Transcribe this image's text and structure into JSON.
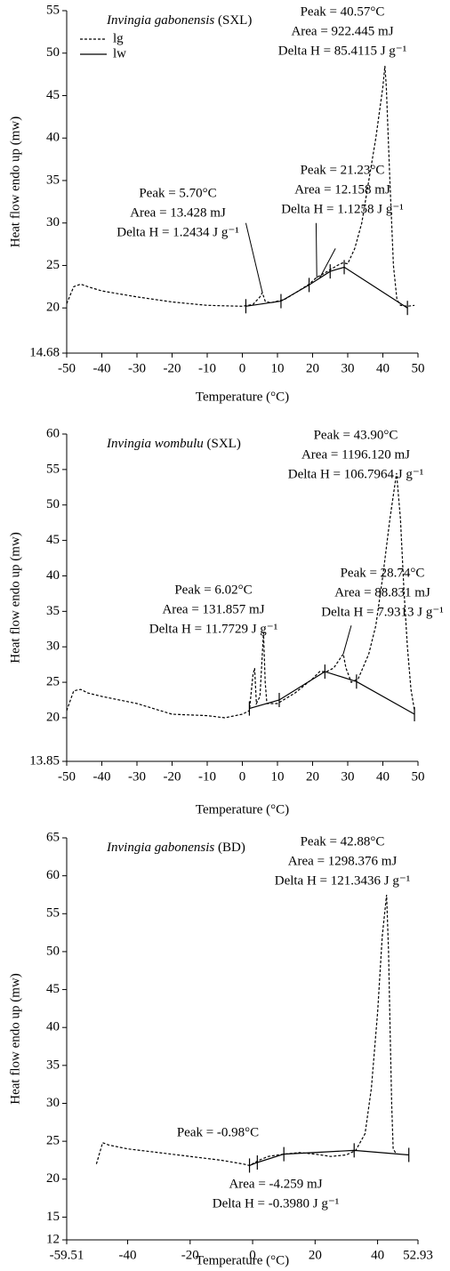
{
  "chart_data": [
    {
      "type": "line",
      "title": "Invingia gabonensis",
      "title_note": "(SXL)",
      "x_label": "Temperature (°C)",
      "y_label": "Heat flow endo up (mw)",
      "xlim": [
        -50,
        50
      ],
      "xticks": [
        -50,
        -40,
        -30,
        -20,
        -10,
        0,
        10,
        20,
        30,
        40,
        50
      ],
      "ylim": [
        14.68,
        55
      ],
      "yticks": [
        14.68,
        20,
        25,
        30,
        35,
        40,
        45,
        50,
        55
      ],
      "legend": true,
      "series": [
        {
          "name": "lg",
          "color": "#000000",
          "style": "dashed",
          "x": [
            -50,
            -48,
            -46,
            -44,
            -40,
            -30,
            -20,
            -10,
            0,
            3,
            5,
            5.7,
            6.5,
            8,
            12,
            16,
            19,
            21.2,
            23,
            25,
            27,
            28.5,
            30,
            32,
            34,
            36,
            38,
            40,
            40.57,
            41,
            42,
            43,
            44,
            45,
            47,
            49
          ],
          "values": [
            20.5,
            22.5,
            22.8,
            22.5,
            22,
            21.3,
            20.7,
            20.3,
            20.2,
            20.4,
            21.3,
            21.8,
            20.8,
            20.6,
            21,
            22,
            22.8,
            23.6,
            24,
            24.5,
            25,
            25.3,
            25.2,
            27,
            30,
            35,
            40,
            46,
            48.5,
            46,
            35,
            25,
            21,
            20.3,
            20.2,
            20.3
          ]
        },
        {
          "name": "lw",
          "color": "#000000",
          "style": "solid",
          "x": [
            1,
            11,
            19,
            25,
            29,
            47
          ],
          "values": [
            20.2,
            20.8,
            22.7,
            24.3,
            24.8,
            20
          ]
        }
      ],
      "annotations": [
        [
          "Peak = 40.57°C",
          "Area = 922.445 mJ",
          "Delta H = 85.4115 J g⁻¹"
        ],
        [
          "Peak = 5.70°C",
          "Area = 13.428 mJ",
          "Delta H = 1.2434 J g⁻¹"
        ],
        [
          "Peak = 21.23°C",
          "Area = 12.158 mJ",
          "Delta H = 1.1258 J g⁻¹"
        ]
      ]
    },
    {
      "type": "line",
      "title": "Invingia wombulu",
      "title_note": "(SXL)",
      "x_label": "Temperature (°C)",
      "y_label": "Heat flow endo up (mw)",
      "xlim": [
        -50,
        50
      ],
      "xticks": [
        -50,
        -40,
        -30,
        -20,
        -10,
        0,
        10,
        20,
        30,
        40,
        50
      ],
      "ylim": [
        13.85,
        60
      ],
      "yticks": [
        13.85,
        20,
        25,
        30,
        35,
        40,
        45,
        50,
        55,
        60
      ],
      "legend": false,
      "series": [
        {
          "color": "#000000",
          "style": "dashed",
          "x": [
            -50,
            -48,
            -46,
            -44,
            -40,
            -30,
            -20,
            -10,
            -5,
            0,
            2,
            3,
            3.5,
            4,
            5,
            6.02,
            6.5,
            7,
            10,
            15,
            20,
            22,
            24,
            26,
            28.74,
            29.5,
            31,
            33,
            36,
            38,
            40,
            42,
            43.9,
            45,
            46,
            47,
            48,
            49
          ],
          "values": [
            21,
            23.8,
            24,
            23.5,
            23,
            22,
            20.5,
            20.3,
            20,
            20.5,
            21,
            26,
            27,
            22,
            23,
            32,
            25,
            22,
            22,
            23.5,
            25.5,
            26.5,
            26.5,
            27,
            29,
            27,
            25,
            25.5,
            29,
            33,
            40,
            48,
            54.5,
            48,
            38,
            30,
            24,
            21
          ]
        },
        {
          "color": "#000000",
          "style": "solid",
          "x": [
            2,
            10.5,
            23.5,
            32.5,
            49
          ],
          "values": [
            21.3,
            22.5,
            26.5,
            25.1,
            20.5
          ]
        }
      ],
      "annotations": [
        [
          "Peak = 43.90°C",
          "Area = 1196.120 mJ",
          "Delta H = 106.7964 J g⁻¹"
        ],
        [
          "Peak = 6.02°C",
          "Area = 131.857 mJ",
          "Delta H = 11.7729 J g⁻¹"
        ],
        [
          "Peak = 28.74°C",
          "Area = 88.831 mJ",
          "Delta H = 7.9313 J g⁻¹"
        ]
      ]
    },
    {
      "type": "line",
      "title": "Invingia gabonensis",
      "title_note": "(BD)",
      "x_label": "Temperature (°C)",
      "y_label": "Heat flow endo up (mw)",
      "xlim": [
        -59.51,
        52.93
      ],
      "xticks": [
        -59.51,
        -40,
        -20,
        0,
        20,
        40,
        52.93
      ],
      "ylim": [
        12,
        65
      ],
      "yticks": [
        12,
        15,
        20,
        25,
        30,
        35,
        40,
        45,
        50,
        55,
        60,
        65
      ],
      "legend": false,
      "series": [
        {
          "color": "#000000",
          "style": "dashed",
          "x": [
            -50,
            -48,
            -46,
            -40,
            -30,
            -20,
            -10,
            -3,
            -0.98,
            2,
            5,
            10,
            15,
            20,
            25,
            30,
            33,
            36,
            38,
            40,
            41.5,
            42.88,
            43.5,
            44,
            44.5,
            45,
            46
          ],
          "values": [
            22,
            24.8,
            24.5,
            24,
            23.5,
            23,
            22.5,
            22,
            21.8,
            22.5,
            23,
            23.3,
            23.5,
            23.3,
            23,
            23.2,
            23.8,
            26,
            32,
            42,
            52,
            57.5,
            50,
            40,
            30,
            24,
            23.3
          ]
        },
        {
          "color": "#000000",
          "style": "solid",
          "x": [
            -1,
            1.5,
            10,
            32.5,
            50
          ],
          "values": [
            21.8,
            22.2,
            23.3,
            23.8,
            23.2
          ]
        }
      ],
      "annotations": [
        [
          "Peak = 42.88°C",
          "Area = 1298.376 mJ",
          "Delta H = 121.3436 J g⁻¹"
        ],
        [
          "Peak = -0.98°C"
        ],
        [
          "Area = -4.259 mJ",
          "Delta H = -0.3980 J g⁻¹"
        ]
      ]
    }
  ]
}
